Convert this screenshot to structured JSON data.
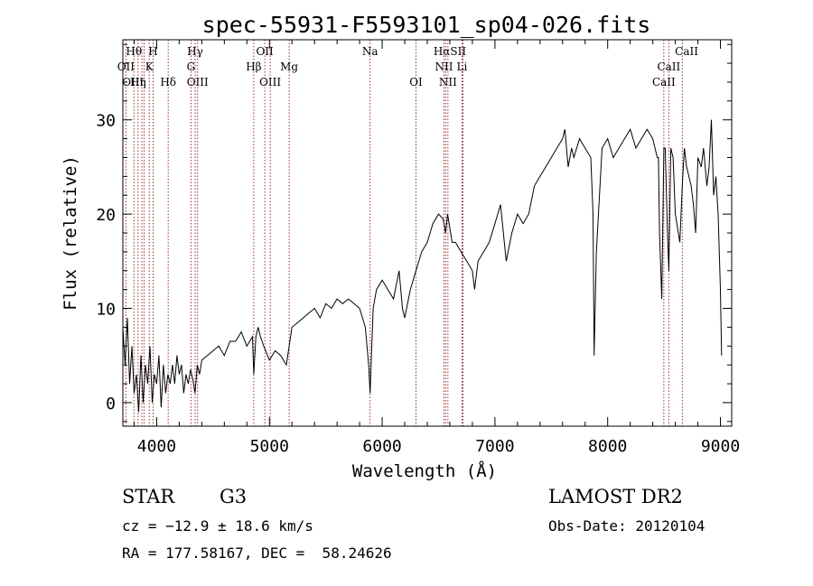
{
  "title": "spec-55931-F5593101_sp04-026.fits",
  "chart_data": {
    "type": "line",
    "title": "spec-55931-F5593101_sp04-026.fits",
    "xlabel": "Wavelength (Å)",
    "ylabel": "Flux (relative)",
    "xlim": [
      3700,
      9100
    ],
    "ylim": [
      -2.5,
      38.5
    ],
    "xticks": [
      4000,
      5000,
      6000,
      7000,
      8000,
      9000
    ],
    "yticks": [
      0,
      10,
      20,
      30
    ],
    "grid": false,
    "series": [
      {
        "x": [
          3700,
          3720,
          3740,
          3760,
          3780,
          3800,
          3820,
          3840,
          3860,
          3880,
          3900,
          3920,
          3940,
          3960,
          3980,
          4000,
          4020,
          4040,
          4060,
          4080,
          4100,
          4120,
          4140,
          4160,
          4180,
          4200,
          4220,
          4240,
          4260,
          4280,
          4300,
          4320,
          4340,
          4360,
          4380,
          4400,
          4450,
          4500,
          4550,
          4600,
          4650,
          4700,
          4750,
          4800,
          4850,
          4861,
          4880,
          4900,
          4920,
          4950,
          5000,
          5050,
          5100,
          5150,
          5200,
          5250,
          5300,
          5350,
          5400,
          5450,
          5500,
          5550,
          5600,
          5650,
          5700,
          5750,
          5800,
          5850,
          5880,
          5893,
          5905,
          5920,
          5950,
          6000,
          6050,
          6100,
          6150,
          6180,
          6200,
          6250,
          6300,
          6350,
          6400,
          6450,
          6500,
          6540,
          6563,
          6580,
          6620,
          6650,
          6700,
          6750,
          6800,
          6820,
          6850,
          6900,
          6950,
          7000,
          7050,
          7100,
          7150,
          7200,
          7250,
          7300,
          7350,
          7400,
          7450,
          7500,
          7550,
          7600,
          7620,
          7650,
          7680,
          7700,
          7750,
          7800,
          7850,
          7870,
          7880,
          7900,
          7950,
          8000,
          8050,
          8100,
          8150,
          8200,
          8250,
          8300,
          8350,
          8400,
          8420,
          8440,
          8450,
          8460,
          8480,
          8498,
          8510,
          8530,
          8542,
          8560,
          8580,
          8600,
          8640,
          8662,
          8680,
          8700,
          8720,
          8740,
          8760,
          8780,
          8800,
          8830,
          8850,
          8880,
          8900,
          8920,
          8940,
          8960,
          8980,
          9000,
          9010
        ],
        "y": [
          8,
          4,
          9,
          2,
          6,
          1,
          3,
          -1,
          5,
          0,
          4,
          2,
          6,
          0,
          3,
          2,
          5,
          -0.5,
          4,
          1,
          3,
          2,
          4,
          2,
          5,
          3,
          4,
          1,
          3,
          2,
          3.5,
          2.5,
          1,
          4,
          3,
          4.5,
          5,
          5.5,
          6,
          5,
          6.5,
          6.5,
          7.5,
          6,
          7,
          3,
          7,
          8,
          7,
          6,
          4.5,
          5.5,
          5,
          4,
          8,
          8.5,
          9,
          9.5,
          10,
          9,
          10.5,
          10,
          11,
          10.5,
          11,
          10.5,
          10,
          8,
          4,
          1,
          5,
          10,
          12,
          13,
          12,
          11,
          14,
          10,
          9,
          12,
          14,
          16,
          17,
          19,
          20,
          19.5,
          18,
          20,
          17,
          17,
          16,
          15,
          14,
          12,
          15,
          16,
          17,
          19,
          21,
          15,
          18,
          20,
          19,
          20,
          23,
          24,
          25,
          26,
          27,
          28,
          29,
          25,
          27,
          26,
          28,
          27,
          26,
          20,
          5,
          16,
          27,
          28,
          26,
          27,
          28,
          29,
          27,
          28,
          29,
          28,
          27,
          26,
          26,
          18,
          11,
          27,
          27,
          18,
          14,
          27,
          26,
          20,
          17,
          23,
          27,
          25,
          24,
          23,
          21,
          18,
          26,
          25,
          27,
          23,
          25,
          30,
          22,
          24,
          20,
          12,
          5
        ]
      }
    ],
    "line_labels": [
      {
        "name": "Hθ",
        "x": 3798,
        "row": 0
      },
      {
        "name": "H",
        "x": 3968,
        "row": 0
      },
      {
        "name": "Hγ",
        "x": 4341,
        "row": 0
      },
      {
        "name": "OII",
        "x": 4959,
        "row": 0
      },
      {
        "name": "Na",
        "x": 5893,
        "row": 0
      },
      {
        "name": "HαSII",
        "x": 6600,
        "row": 0
      },
      {
        "name": "CaII",
        "x": 8700,
        "row": 0
      },
      {
        "name": "OII",
        "x": 3727,
        "row": 1
      },
      {
        "name": "K",
        "x": 3934,
        "row": 1
      },
      {
        "name": "G",
        "x": 4304,
        "row": 1
      },
      {
        "name": "Hβ",
        "x": 4861,
        "row": 1
      },
      {
        "name": "Mg",
        "x": 5175,
        "row": 1
      },
      {
        "name": "NII",
        "x": 6548,
        "row": 1
      },
      {
        "name": "Li",
        "x": 6708,
        "row": 1
      },
      {
        "name": "CaII",
        "x": 8542,
        "row": 1
      },
      {
        "name": "OIII",
        "x": 3790,
        "row": 2
      },
      {
        "name": "Hη",
        "x": 3835,
        "row": 2
      },
      {
        "name": "Hδ",
        "x": 4102,
        "row": 2
      },
      {
        "name": "OIII",
        "x": 4363,
        "row": 2
      },
      {
        "name": "OIII",
        "x": 5007,
        "row": 2
      },
      {
        "name": "OI",
        "x": 6300,
        "row": 2
      },
      {
        "name": "NII",
        "x": 6583,
        "row": 2
      },
      {
        "name": "CaII",
        "x": 8498,
        "row": 2
      }
    ],
    "marker_lines": [
      3727,
      3798,
      3835,
      3869,
      3889,
      3934,
      3968,
      4102,
      4304,
      4341,
      4363,
      4861,
      4959,
      5007,
      5175,
      5893,
      6300,
      6548,
      6563,
      6583,
      6708,
      6716,
      8498,
      8542,
      8662
    ],
    "marker_color": "#8b1a1a"
  },
  "footer": {
    "object_class": "STAR",
    "subclass": "G3",
    "redshift": "cz = −12.9 ± 18.6 km/s",
    "coords": "RA = 177.58167, DEC =  58.24626",
    "survey": "LAMOST DR2",
    "obs_date": "Obs-Date: 20120104"
  }
}
